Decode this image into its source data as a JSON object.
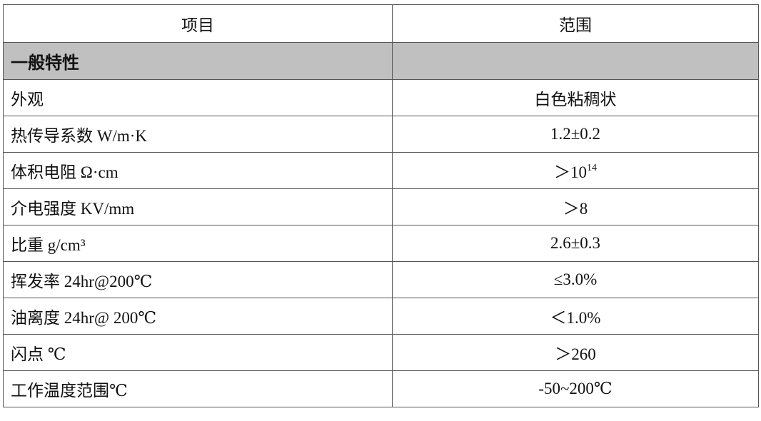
{
  "table": {
    "headers": [
      "项目",
      "范围"
    ],
    "section": "一般特性",
    "rows": [
      {
        "item": "外观",
        "value": "白色粘稠状",
        "sup": ""
      },
      {
        "item": "热传导系数  W/m·K",
        "value": "1.2±0.2",
        "sup": ""
      },
      {
        "item": "体积电阻    Ω·cm",
        "value": "＞10",
        "sup": "14"
      },
      {
        "item": "介电强度  KV/mm",
        "value": "＞8",
        "sup": ""
      },
      {
        "item": "比重  g/cm³",
        "value": "2.6±0.3",
        "sup": ""
      },
      {
        "item": "挥发率  24hr@200℃",
        "value": "≤3.0%",
        "sup": ""
      },
      {
        "item": "油离度  24hr@ 200℃",
        "value": "＜1.0%",
        "sup": ""
      },
      {
        "item": "闪点  ℃",
        "value": "＞260",
        "sup": ""
      },
      {
        "item": "工作温度范围℃",
        "value": "-50~200℃",
        "sup": ""
      }
    ]
  }
}
